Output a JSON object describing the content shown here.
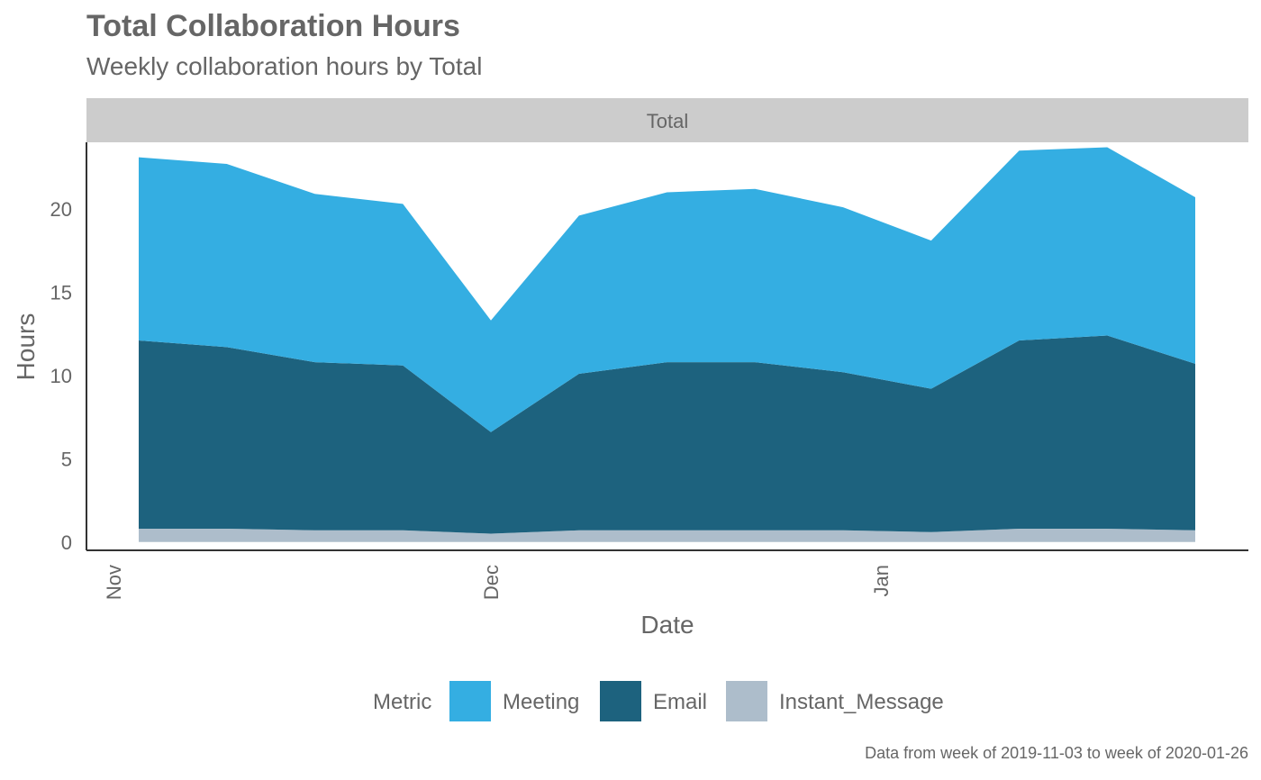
{
  "title": "Total Collaboration Hours",
  "subtitle": "Weekly collaboration hours by Total",
  "caption": "Data from week of 2019-11-03 to week of 2020-01-26",
  "colors": {
    "Meeting": "#34aee2",
    "Email": "#1d627e",
    "Instant_Message": "#adbdcb",
    "strip": "#cccccc",
    "text": "#666666"
  },
  "chart_data": {
    "type": "area",
    "stacked": true,
    "facet": "Total",
    "xlabel": "Date",
    "ylabel": "Hours",
    "x": [
      "2019-11-03",
      "2019-11-10",
      "2019-11-17",
      "2019-11-24",
      "2019-12-01",
      "2019-12-08",
      "2019-12-15",
      "2019-12-22",
      "2019-12-29",
      "2020-01-05",
      "2020-01-12",
      "2020-01-19",
      "2020-01-26"
    ],
    "x_ticks": [
      {
        "date": "2019-11-01",
        "label": "Nov"
      },
      {
        "date": "2019-12-01",
        "label": "Dec"
      },
      {
        "date": "2020-01-01",
        "label": "Jan"
      }
    ],
    "ylim": [
      -0.5,
      24.0
    ],
    "y_ticks": [
      0,
      5,
      10,
      15,
      20
    ],
    "series": [
      {
        "name": "Instant_Message",
        "values": [
          0.8,
          0.8,
          0.7,
          0.7,
          0.5,
          0.7,
          0.7,
          0.7,
          0.7,
          0.6,
          0.8,
          0.8,
          0.7
        ]
      },
      {
        "name": "Email",
        "values": [
          11.3,
          10.9,
          10.1,
          9.9,
          6.1,
          9.4,
          10.1,
          10.1,
          9.5,
          8.6,
          11.3,
          11.6,
          10.0
        ]
      },
      {
        "name": "Meeting",
        "values": [
          11.0,
          11.0,
          10.1,
          9.7,
          6.7,
          9.5,
          10.2,
          10.4,
          9.9,
          8.9,
          11.4,
          11.3,
          10.0
        ]
      }
    ],
    "legend": {
      "position": "bottom",
      "title": "Metric",
      "items": [
        "Meeting",
        "Email",
        "Instant_Message"
      ]
    },
    "grid": false
  }
}
